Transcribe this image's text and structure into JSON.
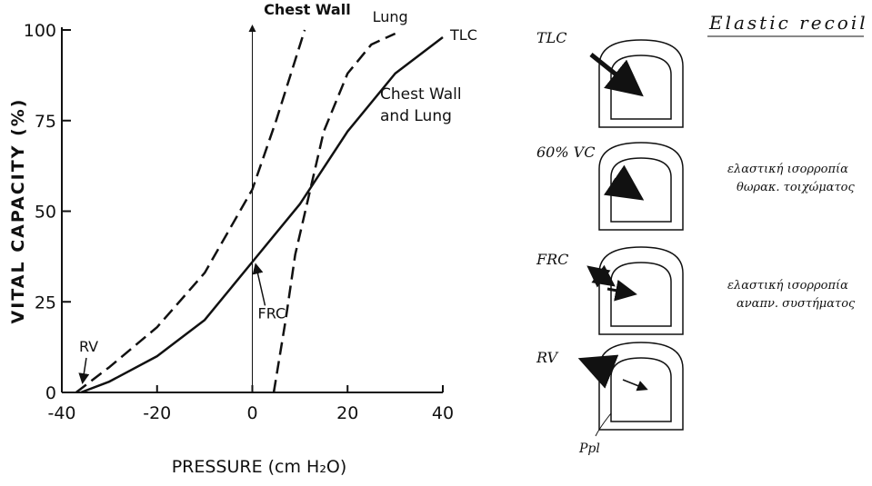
{
  "chart_data": {
    "type": "line",
    "xlabel": "PRESSURE (cm H₂O)",
    "ylabel": "VITAL CAPACITY (%)",
    "xlim": [
      -40,
      40
    ],
    "xticks": [
      -40,
      -20,
      0,
      20,
      40
    ],
    "ylim": [
      0,
      100
    ],
    "yticks": [
      0,
      25,
      50,
      75,
      100
    ],
    "reference_line_x": 0,
    "series": [
      {
        "name": "Chest Wall",
        "color": "#111",
        "dashed": true,
        "x": [
          -37,
          -30,
          -20,
          -10,
          0,
          5,
          11
        ],
        "values": [
          0,
          7,
          18,
          33,
          56,
          75,
          100
        ]
      },
      {
        "name": "Lung",
        "color": "#111",
        "dashed": true,
        "x": [
          4.5,
          7,
          9,
          12,
          15,
          20,
          25,
          30
        ],
        "values": [
          0,
          20,
          38,
          55,
          72,
          88,
          96,
          99
        ]
      },
      {
        "name": "Chest Wall and Lung",
        "color": "#111",
        "dashed": false,
        "x": [
          -36,
          -30,
          -20,
          -10,
          0,
          10,
          20,
          30,
          40
        ],
        "values": [
          0,
          3,
          10,
          20,
          36,
          52,
          72,
          88,
          98
        ]
      }
    ],
    "annotations": [
      "TLC",
      "FRC",
      "RV"
    ]
  },
  "diagram": {
    "title": "Elastic recoil",
    "states": [
      "TLC",
      "60% VC",
      "FRC",
      "RV"
    ],
    "notes": [
      [
        "ελαστική ισορροπία",
        "θωρακ. τοιχώματος"
      ],
      [
        "ελαστική ισορροπία",
        "αναπν. συστήματος"
      ]
    ],
    "pleural_label": "Ppl"
  }
}
